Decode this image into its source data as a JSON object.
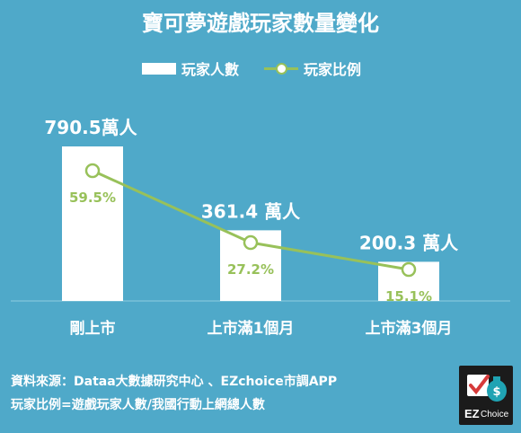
{
  "chart_data": {
    "type": "bar",
    "title": "寶可夢遊戲玩家數量變化",
    "categories": [
      "剛上市",
      "上市滿1個月",
      "上市滿3個月"
    ],
    "series": [
      {
        "name": "玩家人數",
        "type": "bar",
        "values": [
          790.5,
          361.4,
          200.3
        ],
        "labels": [
          "790.5萬人",
          "361.4 萬人",
          "200.3 萬人"
        ],
        "color": "#ffffff"
      },
      {
        "name": "玩家比例",
        "type": "line",
        "values": [
          59.5,
          27.2,
          15.1
        ],
        "labels": [
          "59.5%",
          "27.2%",
          "15.1%"
        ],
        "color": "#98c15a"
      }
    ],
    "legend": "top-center",
    "grid": false
  },
  "colors": {
    "background": "#4fa9c9",
    "bar": "#ffffff",
    "line": "#98c15a",
    "logo_bg": "#1b1b1b"
  },
  "footer": {
    "source": "資料來源：Dataa大數據研究中心 、EZchoice市調APP",
    "definition": "玩家比例=遊戲玩家人數/我國行動上網總人數"
  },
  "logo": {
    "brand": "EZ",
    "brand_suffix": "Choice",
    "icon": "money-bag-check-icon"
  }
}
